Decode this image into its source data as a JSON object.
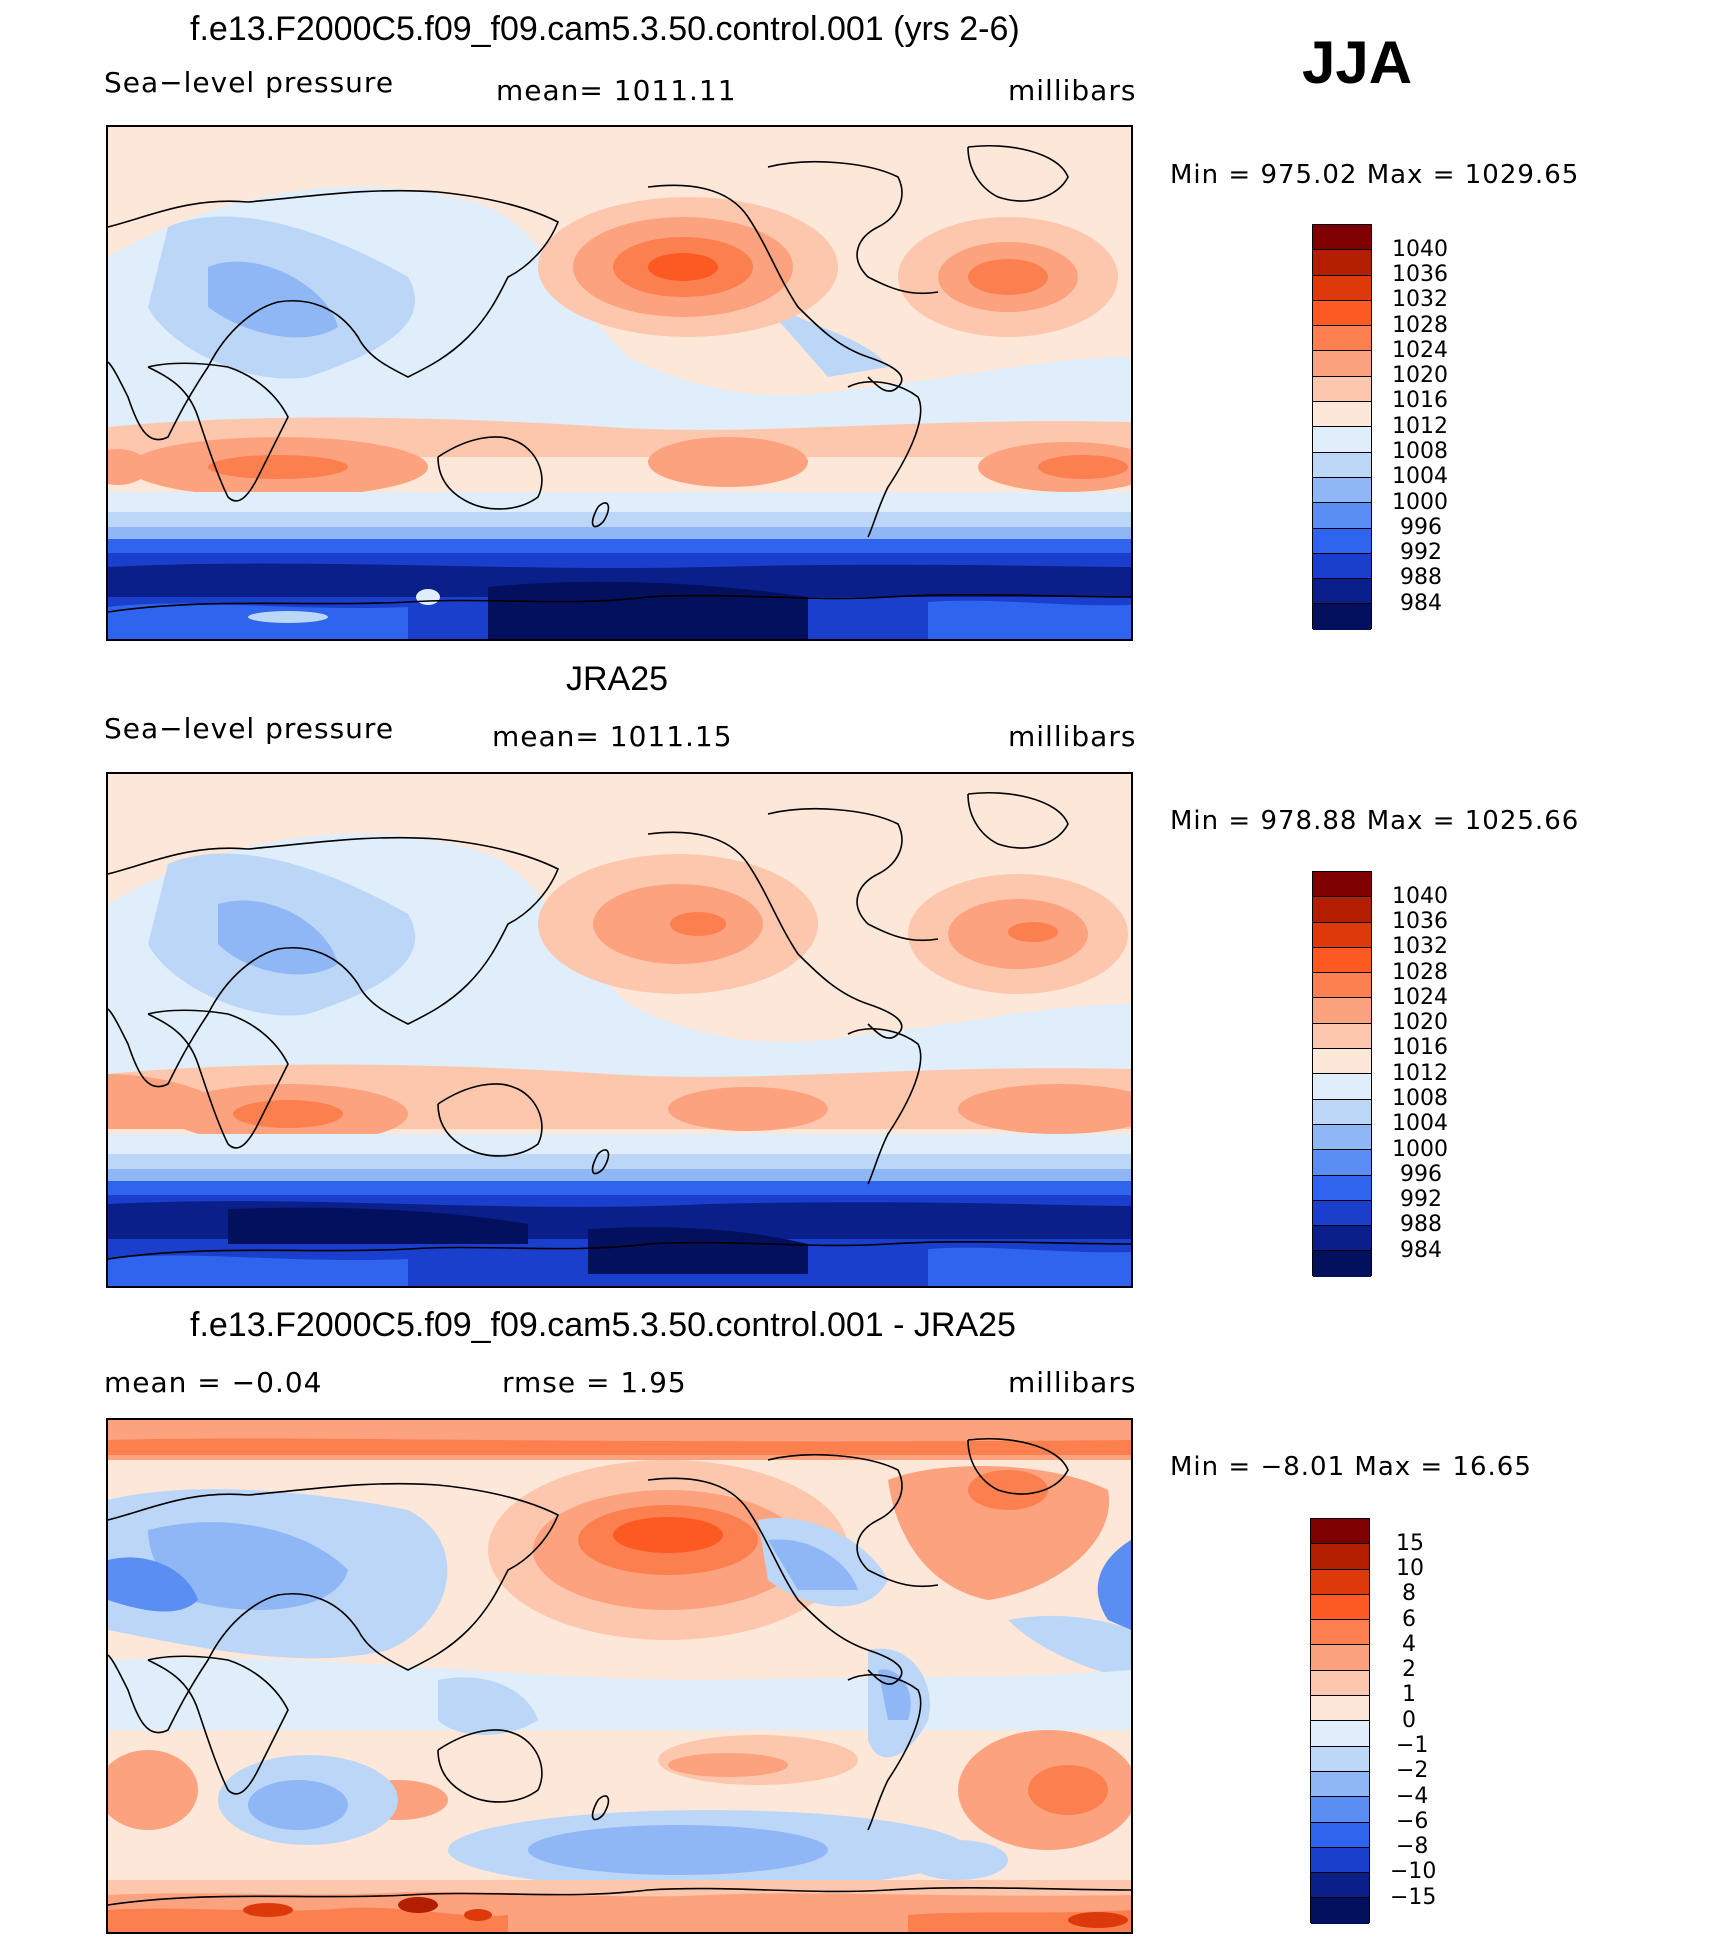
{
  "season": "JJA",
  "panels": [
    {
      "title": "f.e13.F2000C5.f09_f09.cam5.3.50.control.001 (yrs 2-6)",
      "left_label": "Sea−level pressure",
      "center_label": "mean=  1011.11",
      "right_label": "millibars",
      "minmax": "Min  =  975.02  Max  =  1029.65",
      "colorbar": {
        "labels": [
          "1040",
          "1036",
          "1032",
          "1028",
          "1024",
          "1020",
          "1016",
          "1012",
          "1008",
          "1004",
          "1000",
          "996",
          "992",
          "988",
          "984"
        ],
        "colors": [
          "#7f0000",
          "#b21e00",
          "#dd3a0b",
          "#fc5a22",
          "#fc7f4f",
          "#fca27f",
          "#fdc7ad",
          "#fde7d8",
          "#dfeefa",
          "#bcd6f8",
          "#8fb7f6",
          "#5b8ef3",
          "#2e64ee",
          "#1a3fcc",
          "#0b1f8a",
          "#03105e"
        ]
      }
    },
    {
      "title": "JRA25",
      "left_label": "Sea−level pressure",
      "center_label": "mean=  1011.15",
      "right_label": "millibars",
      "minmax": "Min  =  978.88  Max  =  1025.66",
      "colorbar": {
        "labels": [
          "1040",
          "1036",
          "1032",
          "1028",
          "1024",
          "1020",
          "1016",
          "1012",
          "1008",
          "1004",
          "1000",
          "996",
          "992",
          "988",
          "984"
        ],
        "colors": [
          "#7f0000",
          "#b21e00",
          "#dd3a0b",
          "#fc5a22",
          "#fc7f4f",
          "#fca27f",
          "#fdc7ad",
          "#fde7d8",
          "#dfeefa",
          "#bcd6f8",
          "#8fb7f6",
          "#5b8ef3",
          "#2e64ee",
          "#1a3fcc",
          "#0b1f8a",
          "#03105e"
        ]
      }
    },
    {
      "title": "f.e13.F2000C5.f09_f09.cam5.3.50.control.001 - JRA25",
      "left_label": "mean  =    −0.04",
      "center_label": "rmse  =     1.95",
      "right_label": "millibars",
      "minmax": "Min  =   −8.01  Max  =    16.65",
      "colorbar": {
        "labels": [
          "15",
          "10",
          "8",
          "6",
          "4",
          "2",
          "1",
          "0",
          "−1",
          "−2",
          "−4",
          "−6",
          "−8",
          "−10",
          "−15"
        ],
        "colors": [
          "#7f0000",
          "#b21e00",
          "#dd3a0b",
          "#fc5a22",
          "#fc7f4f",
          "#fca27f",
          "#fdc7ad",
          "#fde7d8",
          "#dfeefa",
          "#bcd6f8",
          "#8fb7f6",
          "#5b8ef3",
          "#2e64ee",
          "#1a3fcc",
          "#0b1f8a",
          "#03105e"
        ]
      }
    }
  ]
}
